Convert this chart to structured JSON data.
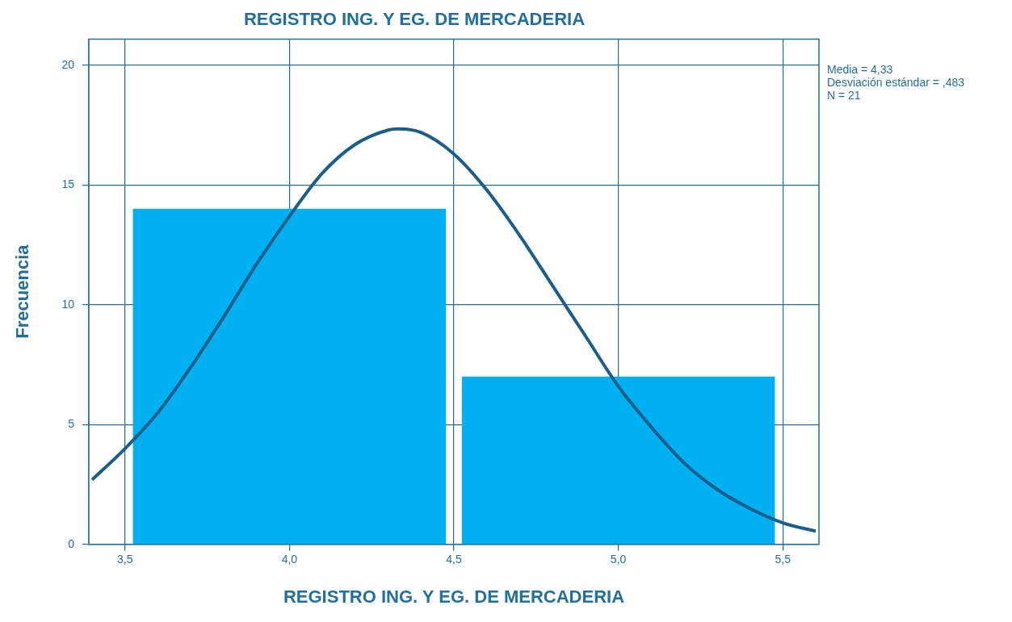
{
  "chart_data": {
    "type": "histogram",
    "title": "REGISTRO ING. Y EG. DE MERCADERIA",
    "xlabel": "REGISTRO ING. Y EG. DE MERCADERIA",
    "ylabel": "Frecuencia",
    "bins": [
      3.5,
      4.5,
      5.5
    ],
    "values": [
      14,
      7
    ],
    "color": "#00b0f0",
    "series": [
      {
        "type": "line",
        "color": "#1b5e8c",
        "x": [
          3.4,
          3.5,
          3.6,
          3.7,
          3.8,
          3.9,
          4.0,
          4.1,
          4.2,
          4.3,
          4.33,
          4.4,
          4.5,
          4.6,
          4.7,
          4.8,
          4.9,
          5.0,
          5.1,
          5.2,
          5.3,
          5.4,
          5.5,
          5.6
        ],
        "values": [
          2.7,
          4.0,
          5.5,
          7.4,
          9.5,
          11.7,
          13.7,
          15.5,
          16.7,
          17.3,
          17.35,
          17.2,
          16.3,
          14.8,
          12.9,
          10.8,
          8.7,
          6.6,
          4.9,
          3.4,
          2.3,
          1.5,
          0.9,
          0.55
        ]
      }
    ],
    "xlim": [
      3.39,
      5.61
    ],
    "xticks": [
      {
        "value": 3.5,
        "label": "3,5"
      },
      {
        "value": 4.0,
        "label": "4,0"
      },
      {
        "value": 4.5,
        "label": "4,5"
      },
      {
        "value": 5.0,
        "label": "5,0"
      },
      {
        "value": 5.5,
        "label": "5,5"
      }
    ],
    "ylim": [
      0,
      21.1
    ],
    "yticks": [
      0,
      5,
      10,
      15,
      20
    ],
    "grid": true,
    "legend": false,
    "marker": "none",
    "line_style": "solid",
    "annotations": [
      "Media = 4,33",
      "Desviación estándar = ,483",
      "N = 21"
    ]
  }
}
